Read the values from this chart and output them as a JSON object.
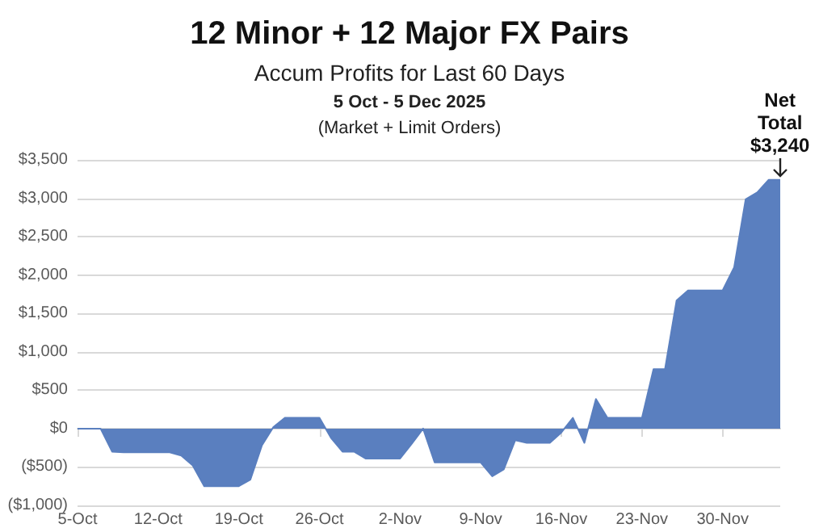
{
  "chart_data": {
    "type": "area",
    "title": "12 Minor + 12 Major FX Pairs",
    "subtitle": "Accum Profits for Last 60 Days",
    "annotations": [
      "5 Oct - 5 Dec 2025",
      "(Market + Limit Orders)",
      {
        "text": "Net\nTotal\n$3,240",
        "y": 3240
      }
    ],
    "categories": [
      "5-Oct",
      null,
      null,
      null,
      null,
      null,
      null,
      "12-Oct",
      null,
      null,
      null,
      null,
      null,
      null,
      "19-Oct",
      null,
      null,
      null,
      null,
      null,
      null,
      "26-Oct",
      null,
      null,
      null,
      null,
      null,
      null,
      "2-Nov",
      null,
      null,
      null,
      null,
      null,
      null,
      "9-Nov",
      null,
      null,
      null,
      null,
      null,
      null,
      "16-Nov",
      null,
      null,
      null,
      null,
      null,
      null,
      "23-Nov",
      null,
      null,
      null,
      null,
      null,
      null,
      "30-Nov",
      null,
      null,
      null,
      null,
      null
    ],
    "series": [
      {
        "color": "#5a7fbf",
        "values": [
          0,
          0,
          0,
          -300,
          -310,
          -310,
          -310,
          -310,
          -310,
          -350,
          -480,
          -750,
          -750,
          -750,
          -750,
          -665,
          -220,
          20,
          140,
          140,
          140,
          140,
          -120,
          -300,
          -300,
          -390,
          -390,
          -390,
          -390,
          -200,
          0,
          -440,
          -440,
          -440,
          -440,
          -440,
          -620,
          -530,
          -150,
          -185,
          -185,
          -185,
          -50,
          140,
          -185,
          385,
          140,
          140,
          140,
          140,
          775,
          775,
          1667,
          1800,
          1800,
          1800,
          1800,
          2100,
          2985,
          3075,
          3240,
          3240
        ]
      }
    ],
    "ylim": [
      -1000,
      3500
    ],
    "yticks": [
      {
        "value": -1000,
        "label": "($1,000)"
      },
      {
        "value": -500,
        "label": "($500)"
      },
      {
        "value": 0,
        "label": "$0"
      },
      {
        "value": 500,
        "label": "$500"
      },
      {
        "value": 1000,
        "label": "$1,000"
      },
      {
        "value": 1500,
        "label": "$1,500"
      },
      {
        "value": 2000,
        "label": "$2,000"
      },
      {
        "value": 2500,
        "label": "$2,500"
      },
      {
        "value": 3000,
        "label": "$3,000"
      },
      {
        "value": 3500,
        "label": "$3,500"
      }
    ],
    "grid": "y"
  }
}
